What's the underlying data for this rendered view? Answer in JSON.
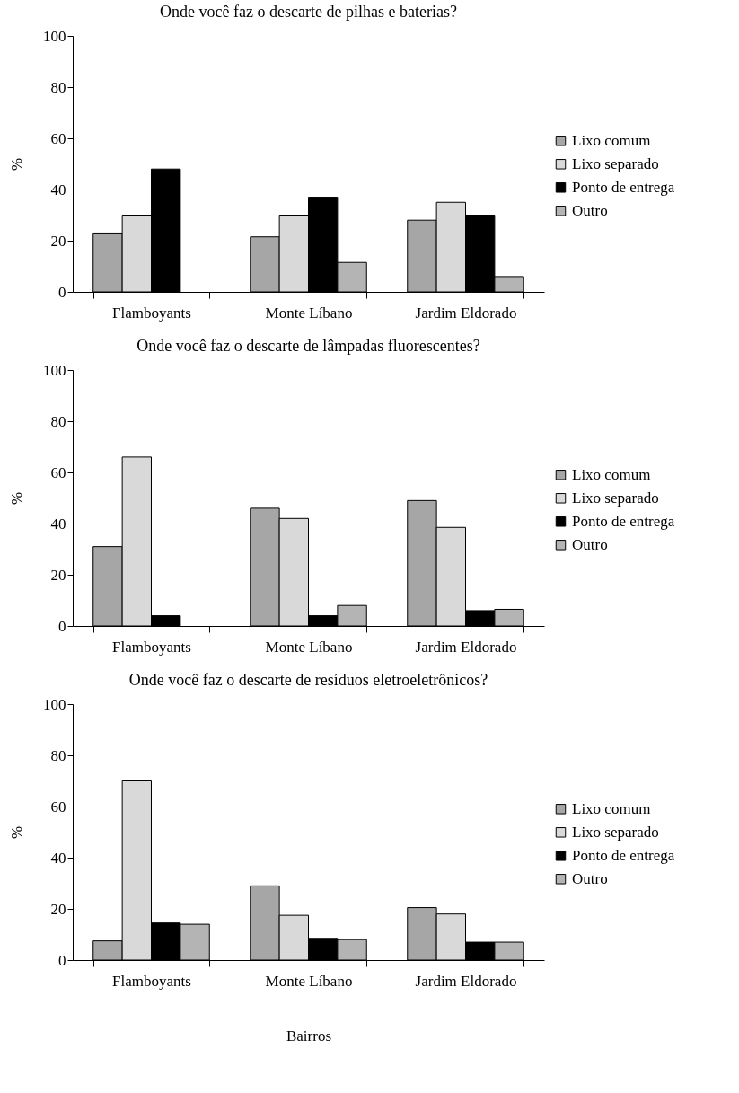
{
  "chart_data": [
    {
      "type": "bar",
      "title": "Onde você faz o descarte de pilhas e baterias?",
      "ylabel": "%",
      "categories": [
        "Flamboyants",
        "Monte Líbano",
        "Jardim Eldorado"
      ],
      "ylim": [
        0,
        100
      ],
      "yticks": [
        0,
        20,
        40,
        60,
        80,
        100
      ],
      "grid": false,
      "legend": "right",
      "series": [
        {
          "name": "Lixo comum",
          "color": "#a6a6a6",
          "values": [
            23,
            21.5,
            28
          ]
        },
        {
          "name": "Lixo separado",
          "color": "#d9d9d9",
          "values": [
            30,
            30,
            35
          ]
        },
        {
          "name": "Ponto de entrega",
          "color": "#000000",
          "values": [
            48,
            37,
            30
          ]
        },
        {
          "name": "Outro",
          "color": "#b4b4b4",
          "values": [
            null,
            11.5,
            6
          ]
        }
      ]
    },
    {
      "type": "bar",
      "title": "Onde você faz o descarte de lâmpadas fluorescentes?",
      "ylabel": "%",
      "categories": [
        "Flamboyants",
        "Monte Líbano",
        "Jardim Eldorado"
      ],
      "ylim": [
        0,
        100
      ],
      "yticks": [
        0,
        20,
        40,
        60,
        80,
        100
      ],
      "grid": false,
      "legend": "right",
      "series": [
        {
          "name": "Lixo comum",
          "color": "#a6a6a6",
          "values": [
            31,
            46,
            49
          ]
        },
        {
          "name": "Lixo separado",
          "color": "#d9d9d9",
          "values": [
            66,
            42,
            38.5
          ]
        },
        {
          "name": "Ponto de entrega",
          "color": "#000000",
          "values": [
            4,
            4,
            6
          ]
        },
        {
          "name": "Outro",
          "color": "#b4b4b4",
          "values": [
            null,
            8,
            6.5
          ]
        }
      ]
    },
    {
      "type": "bar",
      "title": "Onde você faz o descarte de resíduos eletroeletrônicos?",
      "ylabel": "%",
      "xlabel": "Bairros",
      "categories": [
        "Flamboyants",
        "Monte Líbano",
        "Jardim Eldorado"
      ],
      "ylim": [
        0,
        100
      ],
      "yticks": [
        0,
        20,
        40,
        60,
        80,
        100
      ],
      "grid": false,
      "legend": "right",
      "series": [
        {
          "name": "Lixo comum",
          "color": "#a6a6a6",
          "values": [
            7.5,
            29,
            20.5
          ]
        },
        {
          "name": "Lixo separado",
          "color": "#d9d9d9",
          "values": [
            70,
            17.5,
            18
          ]
        },
        {
          "name": "Ponto de entrega",
          "color": "#000000",
          "values": [
            14.5,
            8.5,
            7
          ]
        },
        {
          "name": "Outro",
          "color": "#b4b4b4",
          "values": [
            14,
            8,
            7
          ]
        }
      ]
    }
  ]
}
